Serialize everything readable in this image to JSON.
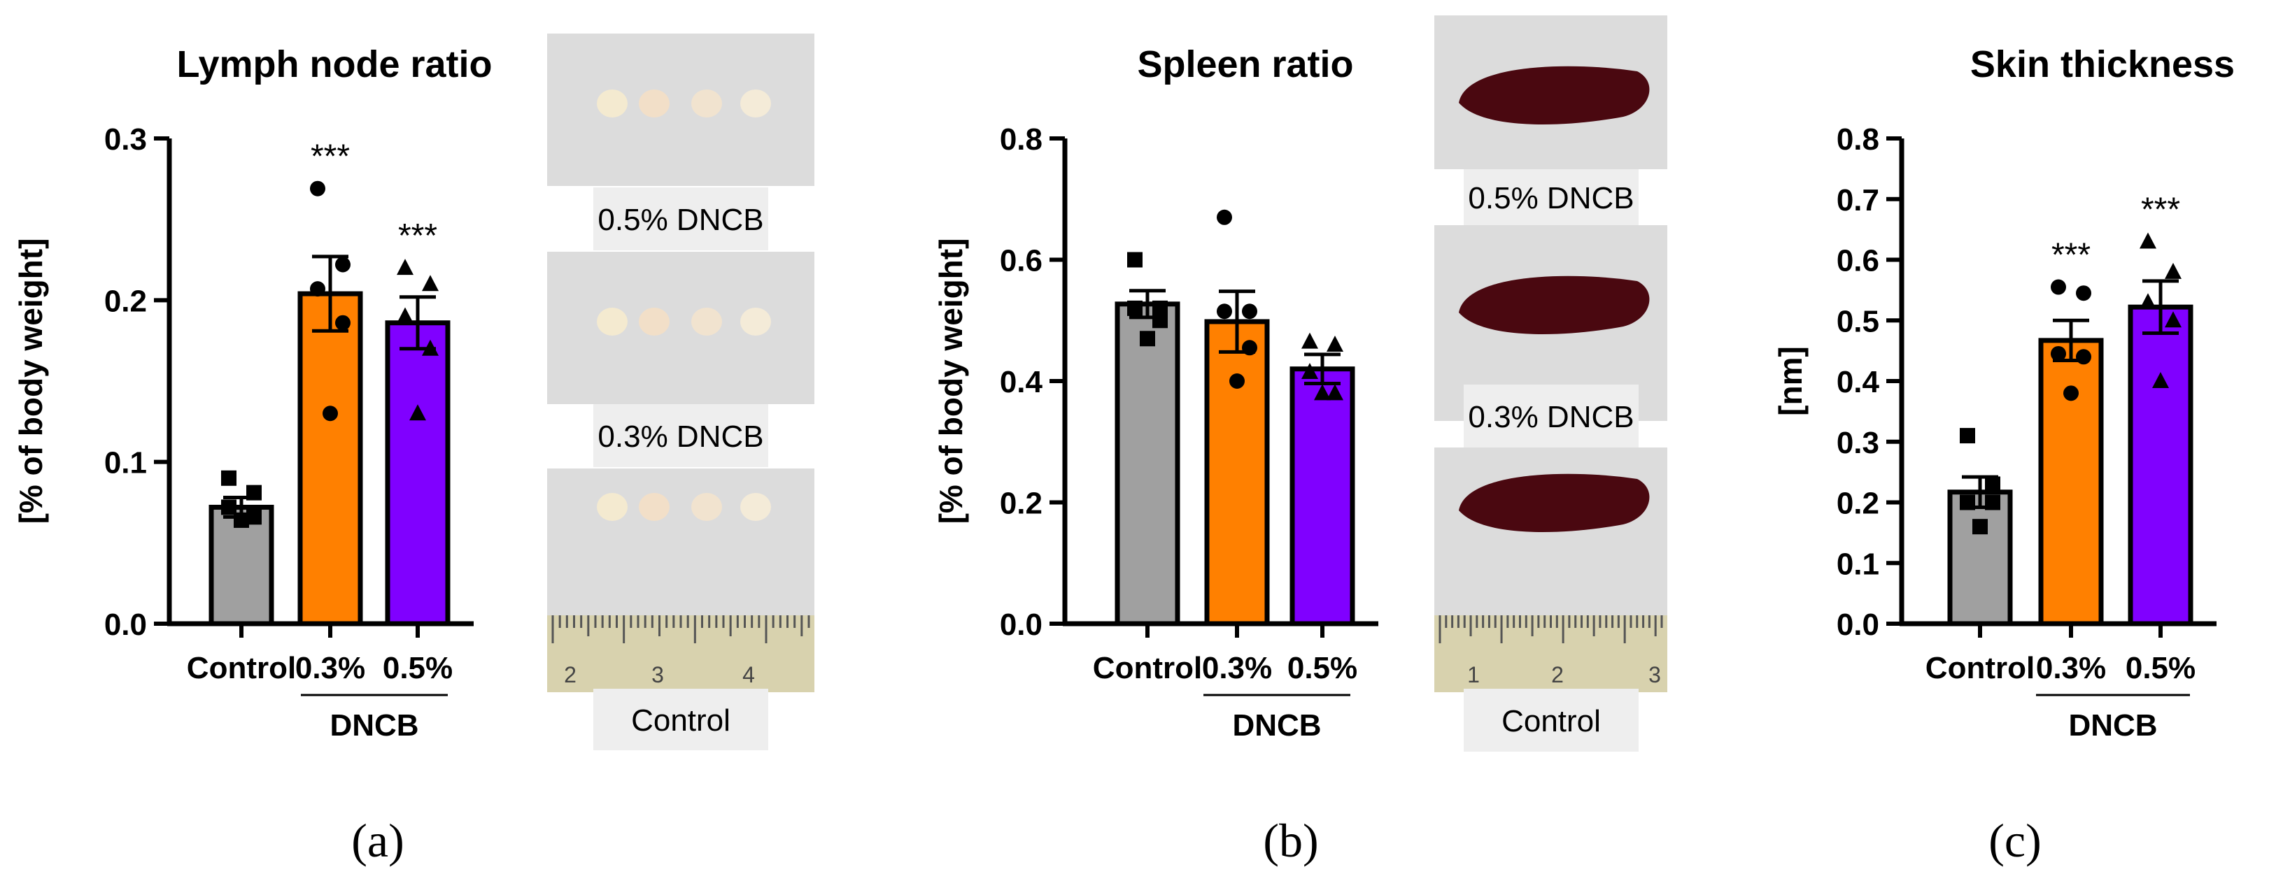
{
  "colors": {
    "control": "#a0a0a0",
    "dncb_03": "#ff8000",
    "dncb_05": "#8000ff",
    "outline": "#000000",
    "photo_bg": "#dcdcdc",
    "photo_label_bg": "#eeeeee",
    "spleen": "#4a0810",
    "lymph_node": "#f1e6d2",
    "ruler": "#d8d2ae"
  },
  "chart_data": [
    {
      "type": "bar",
      "title": "Lymph node ratio",
      "ylabel": "[% of body weight]",
      "ylim": [
        0,
        0.3
      ],
      "yticks": [
        "0.0",
        "0.1",
        "0.2",
        "0.3"
      ],
      "categories": [
        "Control",
        "0.3%",
        "0.5%"
      ],
      "group_label": "DNCB",
      "values": [
        0.072,
        0.204,
        0.186
      ],
      "sem": [
        0.006,
        0.023,
        0.016
      ],
      "points": [
        [
          0.09,
          0.081,
          0.072,
          0.066,
          0.064
        ],
        [
          0.269,
          0.222,
          0.207,
          0.186,
          0.13
        ],
        [
          0.22,
          0.21,
          0.19,
          0.17,
          0.13
        ]
      ],
      "markers": [
        "square",
        "circle",
        "triangle"
      ],
      "significance": [
        "",
        "***",
        "***"
      ],
      "panel": "(a)"
    },
    {
      "type": "bar",
      "title": "Spleen ratio",
      "ylabel": "[% of body weight]",
      "ylim": [
        0,
        0.8
      ],
      "yticks": [
        "0.0",
        "0.2",
        "0.4",
        "0.6",
        "0.8"
      ],
      "categories": [
        "Control",
        "0.3%",
        "0.5%"
      ],
      "group_label": "DNCB",
      "values": [
        0.527,
        0.498,
        0.42
      ],
      "sem": [
        0.022,
        0.05,
        0.024
      ],
      "points": [
        [
          0.6,
          0.52,
          0.52,
          0.5,
          0.47
        ],
        [
          0.67,
          0.515,
          0.515,
          0.455,
          0.4
        ],
        [
          0.465,
          0.46,
          0.415,
          0.38,
          0.38
        ]
      ],
      "markers": [
        "square",
        "circle",
        "triangle"
      ],
      "significance": [
        "",
        "",
        ""
      ],
      "panel": "(b)"
    },
    {
      "type": "bar",
      "title": "Skin thickness",
      "ylabel": "[nm]",
      "ylim": [
        0,
        0.8
      ],
      "yticks": [
        "0.0",
        "0.1",
        "0.2",
        "0.3",
        "0.4",
        "0.5",
        "0.6",
        "0.7",
        "0.8"
      ],
      "categories": [
        "Control",
        "0.3%",
        "0.5%"
      ],
      "group_label": "DNCB",
      "values": [
        0.217,
        0.467,
        0.522
      ],
      "sem": [
        0.025,
        0.033,
        0.043
      ],
      "points": [
        [
          0.31,
          0.23,
          0.2,
          0.2,
          0.16
        ],
        [
          0.555,
          0.545,
          0.445,
          0.44,
          0.38
        ],
        [
          0.63,
          0.58,
          0.53,
          0.5,
          0.4
        ]
      ],
      "markers": [
        "square",
        "circle",
        "triangle"
      ],
      "significance": [
        "",
        "***",
        "***"
      ],
      "panel": "(c)"
    }
  ],
  "photos": {
    "lymph_node": [
      "0.5% DNCB",
      "0.3% DNCB",
      "Control"
    ],
    "spleen": [
      "0.5% DNCB",
      "0.3% DNCB",
      "Control"
    ],
    "lymph_ruler_ticks": [
      "2",
      "3",
      "4"
    ],
    "spleen_ruler_ticks": [
      "1",
      "2",
      "3"
    ]
  }
}
